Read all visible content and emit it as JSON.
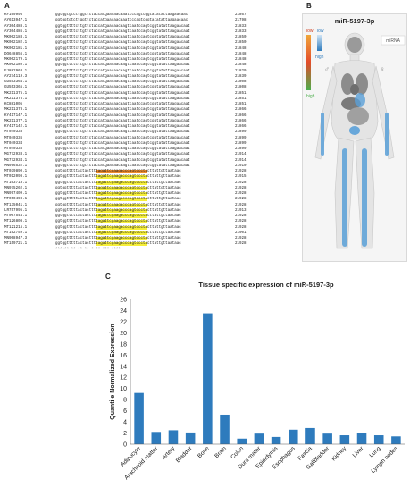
{
  "panelA": {
    "label": "A",
    "rows": [
      {
        "id": "KF169996",
        "seq": "ggtggtgtcttggttctaccatgaacaacaaatcccagtcggtatatattaagaacaac",
        "end": "21867"
      },
      {
        "id": "AY613947.1",
        "seq": "ggtggtgtcttggttctaccatgaacaacaaatcccagtcggtatatattaagaacaac",
        "end": "21798"
      },
      {
        "id": "AY304488.1",
        "seq": "ggtggttttcttgttctaccatgaacaacaagtcaatccagtcggtatattaagaacaat",
        "end": "21833"
      },
      {
        "id": "AY304486.1",
        "seq": "ggtggttttcttgttctaccatgaacaacaagtcaatccagtcggtatattaagaacaat",
        "end": "21833"
      },
      {
        "id": "MK062183.1",
        "seq": "ggtggttttcttgttctaccatgaacaacaagtcaatccagtcggtatattaagaacaat",
        "end": "21850"
      },
      {
        "id": "MK062182.1",
        "seq": "ggtggttttcttgttctaccatgaacaacaagtcaatccagtcggtatattaagaacaat",
        "end": "21850"
      },
      {
        "id": "MK062181.1",
        "seq": "ggtggttttcttgttctaccatgaacaacaagtcaatccagtcggtatattaagaacaat",
        "end": "21848"
      },
      {
        "id": "DQ648856.1",
        "seq": "ggtggttttcttgttctaccatgaacaacaagtcaatccagtcggtatattaagaacaat",
        "end": "21848"
      },
      {
        "id": "MK062179.1",
        "seq": "ggtggttttcttgttctaccatgaacaacaagtcaatccagtcggtatattaagaacaat",
        "end": "21848"
      },
      {
        "id": "MK062180.1",
        "seq": "ggtggttttcttgttctaccatgaacaacaagtcaatccagtcggtatattaagaacaat",
        "end": "21848"
      },
      {
        "id": "FJ882963.1",
        "seq": "ggtggttttcttgttctaccatgaacaacaagtcaatccagtcggtatattaagaacaat",
        "end": "21829"
      },
      {
        "id": "AY274119.3",
        "seq": "ggtggttttcttgttctaccatgaacaacaagtcaatccagtcggtatattaagaacaat",
        "end": "21839"
      },
      {
        "id": "GU553364.1",
        "seq": "ggtggttttcttgttctaccatgaacaacaagtcaatccagtcggtatattaagaacaat",
        "end": "21808"
      },
      {
        "id": "GU553365.1",
        "seq": "ggtggttttcttgttctaccatgaacaacaagtcaatccagtcggtatattaagaacaat",
        "end": "21808"
      },
      {
        "id": "MK211375.1",
        "seq": "ggtggttttcttgttctaccatgaacaacaagtcaatccagtcggtatattaagaacaat",
        "end": "21851"
      },
      {
        "id": "MK211376.1",
        "seq": "ggtggttttcttgttctaccatgaacaacaagtcaatccagtcggtatattaagaacaat",
        "end": "21851"
      },
      {
        "id": "KC881005",
        "seq": "ggtggttttcttgttctaccatgaacaacaagtcaatccagtcggtatattaagaacaat",
        "end": "21851"
      },
      {
        "id": "MK211378.1",
        "seq": "ggtggttttcttgttctaccatgaacaacaagtcaatccagtcggtatattaagaacaat",
        "end": "21866"
      },
      {
        "id": "KY417147.1",
        "seq": "ggtggttttcttgttctaccatgaacaacaagtcaatccagtcggtatattaagaacaat",
        "end": "21866"
      },
      {
        "id": "MK211377.1",
        "seq": "ggtggttttcttgttctaccatgaacaacaagtcaatccagtcggtatattaagaacaat",
        "end": "21866"
      },
      {
        "id": "KY417142.1",
        "seq": "ggtggttttcttgttctaccatgaacaacaagtcaatccagtcggtatattaagaacaat",
        "end": "21866"
      },
      {
        "id": "MT040333",
        "seq": "ggtggttttcttgttctaccatgaacaacaagtcaatccagtcggtatattaagaacaat",
        "end": "21899"
      },
      {
        "id": "MT040336",
        "seq": "ggtggttttcttgttctaccatgaacaacaagtcaatccagtcggtatattaagaacaat",
        "end": "21899"
      },
      {
        "id": "MT040334",
        "seq": "ggtggttttcttgttctaccatgaacaacaagtcaatccagtcggtatattaagaacaat",
        "end": "21899"
      },
      {
        "id": "MT040335",
        "seq": "ggtggttttcttgttctaccatgaacaacaagtcaatccagtcggtatattaagaacaat",
        "end": "21899"
      },
      {
        "id": "MG772933.1",
        "seq": "ggtggttttcttgttctaccatgaacaacaagtcaatccagtcggtatattaagaacaat",
        "end": "21914"
      },
      {
        "id": "MG772934.1",
        "seq": "ggtggttttcttgttctaccatgaacaacaagtcaatccagtcggtatattaagaacaat",
        "end": "21914"
      },
      {
        "id": "MN996532.1",
        "seq": "ggtggttttcttgttctaccatgaacaacaagtcaatccagtcggtatattaagaacaat",
        "end": "21910"
      },
      {
        "id": "MT039890.1",
        "seq": "ggtggtttttactacttttagattcgaagacccagtccctacttattgttaataac",
        "end": "21928"
      },
      {
        "id": "MT012098.1",
        "seq": "ggtggtttttactacttttagattcgaagacccagtccctacttattgttaataac",
        "end": "21915"
      },
      {
        "id": "MT163718.1",
        "seq": "ggtggtttttactacttttagattcgaagacccagtccctacttattgttaataac",
        "end": "21928"
      },
      {
        "id": "MN975262.1",
        "seq": "ggtggtttttactacttttagattcgaagacccagtccctacttattgttaataac",
        "end": "21928"
      },
      {
        "id": "MN997409.1",
        "seq": "ggtggtttttactacttttagattcgaagacccagtccctacttattgttaataac",
        "end": "21928"
      },
      {
        "id": "MT050493.1",
        "seq": "ggtggtttttactacttttagattcgaagacccagtccctacttattgttaataac",
        "end": "21928"
      },
      {
        "id": "MT135041.1",
        "seq": "ggtggtttttactacttttagattcgaagacccagtccctacttattgttaataac",
        "end": "21928"
      },
      {
        "id": "LR757995.1",
        "seq": "ggtggtttttactacttttagattcgaagacccagtccctacttattgttaataac",
        "end": "21913"
      },
      {
        "id": "MT007544.1",
        "seq": "ggtggtttttactacttttagattcgaagacccagtccctacttattgttaataac",
        "end": "21928"
      },
      {
        "id": "MT126808.1",
        "seq": "ggtggtttttactacttttagattcgaagacccagtccctacttattgttaataac",
        "end": "21928"
      },
      {
        "id": "MT121215.1",
        "seq": "ggtggtttttactacttttagattcgaagacccagtccctacttattgttaataac",
        "end": "21928"
      },
      {
        "id": "MT192759.1",
        "seq": "ggtggtttttactacttttagattcgaagacccagtccctacttattgttaataac",
        "end": "21901"
      },
      {
        "id": "MN908947.3",
        "seq": "ggtggtttttactacttttagattcgaagacccagtccctacttattgttaataac",
        "end": "21928"
      },
      {
        "id": "MT159721.1",
        "seq": "ggtggtttttactacttttagattcgaagacccagtccctacttattgttaataac",
        "end": "21928"
      }
    ],
    "consensus": "****** **   **   **  *  **  ***  ****"
  },
  "panelB": {
    "label": "B",
    "title": "miR-5197-3p",
    "legend_low": "low",
    "legend_high": "high",
    "legend_low2": "low",
    "legend_high2": "high",
    "tab_label": "miRNA",
    "male_symbol": "♂",
    "female_symbol": "♀",
    "highlight_color": "#5aa0d8",
    "organ_color": "#9a9a9a"
  },
  "panelC": {
    "label": "C"
  },
  "chart_data": {
    "type": "bar",
    "title": "Tissue specific expression of miR-5197-3p",
    "ylabel": "Quantile Normalized Expression",
    "xlabel": "",
    "ylim": [
      0,
      26
    ],
    "yticks": [
      0,
      2,
      4,
      6,
      8,
      10,
      12,
      14,
      16,
      18,
      20,
      22,
      24,
      26
    ],
    "categories": [
      "Adipocyte",
      "Arachnoid matter",
      "Artery",
      "Bladder",
      "Bone",
      "Brain",
      "Colon",
      "Dura mater",
      "Epididymis",
      "Esophagus",
      "Fascia",
      "Gallbladder",
      "Kidney",
      "Liver",
      "Lung",
      "Lymph nodes"
    ],
    "values": [
      9.2,
      2.2,
      2.5,
      2.1,
      23.5,
      5.3,
      1.0,
      1.9,
      1.3,
      2.6,
      2.9,
      1.9,
      1.6,
      2.0,
      1.6,
      1.4
    ],
    "bar_color": "#2e7bbd",
    "grid": false,
    "legend": "none"
  }
}
